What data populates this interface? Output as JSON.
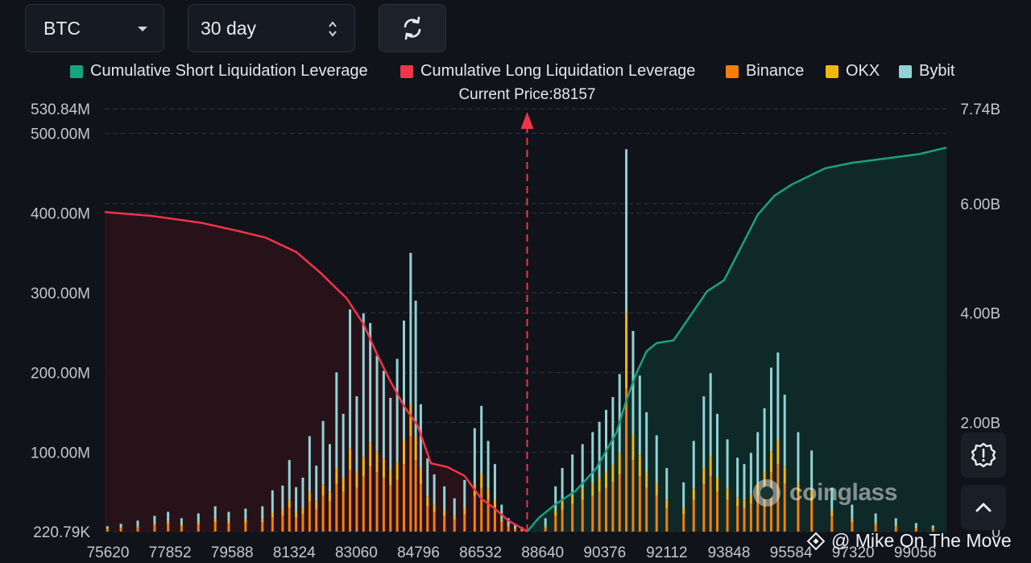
{
  "controls": {
    "symbol": "BTC",
    "range": "30 day"
  },
  "legend": [
    {
      "label": "Cumulative Short Liquidation Leverage",
      "color": "#1ba17f"
    },
    {
      "label": "Cumulative Long Liquidation Leverage",
      "color": "#f0344a"
    },
    {
      "label": "Binance",
      "color": "#f57f0c"
    },
    {
      "label": "OKX",
      "color": "#f2b612"
    },
    {
      "label": "Bybit",
      "color": "#8fd3d6"
    }
  ],
  "current_price_label": "Current Price:88157",
  "watermark": "coinglass",
  "credit": "@ Mike On The Move",
  "icons": [
    "chevron-down-icon",
    "updown-arrows-icon",
    "refresh-icon",
    "warning-gear-icon",
    "chevron-up-icon",
    "binance-diamond-icon"
  ],
  "chart_data": {
    "type": "bar",
    "title": "",
    "xlabel": "",
    "x_tick_labels": [
      "75620",
      "77852",
      "79588",
      "81324",
      "83060",
      "84796",
      "86532",
      "88640",
      "90376",
      "92112",
      "93848",
      "95584",
      "97320",
      "99056"
    ],
    "x_range": [
      75620,
      100600
    ],
    "current_price": 88157,
    "y_left": {
      "range": [
        220790,
        530840000
      ],
      "tick_labels": [
        "530.84M",
        "500.00M",
        "400.00M",
        "300.00M",
        "200.00M",
        "100.00M",
        "220.79K"
      ],
      "tick_values": [
        530840000,
        500000000,
        400000000,
        300000000,
        200000000,
        100000000,
        220790
      ]
    },
    "y_right": {
      "range": [
        0,
        7740000000
      ],
      "tick_labels": [
        "7.74B",
        "6.00B",
        "4.00B",
        "2.00B",
        "0"
      ],
      "tick_values": [
        7740000000,
        6000000000,
        4000000000,
        2000000000,
        0
      ]
    },
    "long_cumulative": {
      "name": "Cumulative Long Liquidation Leverage",
      "price": [
        75620,
        77000,
        78500,
        79600,
        80400,
        81300,
        82000,
        82800,
        83300,
        83700,
        84100,
        84500,
        84900,
        85300,
        85800,
        86300,
        86800,
        87200,
        87600,
        88000,
        88157
      ],
      "value": [
        5850000000,
        5780000000,
        5650000000,
        5500000000,
        5380000000,
        5120000000,
        4750000000,
        4270000000,
        3800000000,
        3250000000,
        2750000000,
        2300000000,
        1950000000,
        1250000000,
        1180000000,
        1020000000,
        600000000,
        420000000,
        200000000,
        60000000,
        0
      ]
    },
    "short_cumulative": {
      "name": "Cumulative Short Liquidation Leverage",
      "price": [
        88157,
        88500,
        89000,
        89600,
        90200,
        90800,
        91100,
        91400,
        91700,
        92000,
        92500,
        93000,
        93500,
        94000,
        94500,
        95000,
        95500,
        96000,
        96500,
        97000,
        97800,
        98800,
        99800,
        100600
      ],
      "value": [
        0,
        250000000,
        500000000,
        750000000,
        1150000000,
        1800000000,
        2400000000,
        2900000000,
        3300000000,
        3450000000,
        3500000000,
        3950000000,
        4400000000,
        4600000000,
        5200000000,
        5800000000,
        6150000000,
        6350000000,
        6500000000,
        6650000000,
        6750000000,
        6830000000,
        6910000000,
        7030000000
      ]
    },
    "bars": {
      "series_names": [
        "Binance",
        "OKX",
        "Bybit"
      ],
      "price": [
        75700,
        76100,
        76600,
        77100,
        77500,
        77900,
        78400,
        78900,
        79300,
        79800,
        80300,
        80600,
        80900,
        81100,
        81300,
        81500,
        81700,
        81900,
        82100,
        82300,
        82500,
        82700,
        82900,
        83100,
        83300,
        83500,
        83700,
        83900,
        84100,
        84300,
        84500,
        84700,
        84850,
        85000,
        85200,
        85400,
        85700,
        86000,
        86300,
        86600,
        86800,
        87000,
        87200,
        87400,
        87600,
        87800,
        88000,
        88700,
        89000,
        89200,
        89500,
        89800,
        90100,
        90300,
        90500,
        90700,
        90900,
        91100,
        91300,
        91500,
        91700,
        92000,
        92300,
        92800,
        93100,
        93400,
        93600,
        93800,
        94100,
        94400,
        94600,
        94800,
        95000,
        95200,
        95400,
        95600,
        95800,
        96200,
        96600,
        97200,
        97800,
        98500,
        99100,
        99700,
        100200
      ],
      "binance": [
        3000000,
        4000000,
        5000000,
        8000000,
        10000000,
        7000000,
        9000000,
        12000000,
        10000000,
        11000000,
        12000000,
        18000000,
        20000000,
        30000000,
        18000000,
        22000000,
        38000000,
        28000000,
        45000000,
        38000000,
        60000000,
        50000000,
        78000000,
        55000000,
        70000000,
        82000000,
        75000000,
        68000000,
        58000000,
        65000000,
        85000000,
        120000000,
        90000000,
        60000000,
        32000000,
        25000000,
        20000000,
        15000000,
        22000000,
        45000000,
        55000000,
        40000000,
        30000000,
        12000000,
        6000000,
        3000000,
        2000000,
        5000000,
        20000000,
        28000000,
        35000000,
        40000000,
        45000000,
        50000000,
        55000000,
        62000000,
        72000000,
        180000000,
        90000000,
        70000000,
        55000000,
        45000000,
        30000000,
        22000000,
        40000000,
        60000000,
        70000000,
        50000000,
        40000000,
        32000000,
        30000000,
        35000000,
        45000000,
        55000000,
        75000000,
        85000000,
        60000000,
        45000000,
        38000000,
        20000000,
        12000000,
        8000000,
        6000000,
        4000000,
        3000000
      ],
      "okx": [
        1000000,
        1000000,
        2000000,
        2000000,
        3000000,
        2000000,
        3000000,
        4000000,
        3000000,
        4000000,
        4000000,
        6000000,
        8000000,
        10000000,
        6000000,
        8000000,
        12000000,
        10000000,
        14000000,
        12000000,
        20000000,
        18000000,
        26000000,
        20000000,
        24000000,
        30000000,
        26000000,
        24000000,
        20000000,
        22000000,
        30000000,
        40000000,
        30000000,
        20000000,
        12000000,
        9000000,
        7000000,
        5000000,
        8000000,
        15000000,
        18000000,
        14000000,
        10000000,
        4000000,
        2000000,
        1000000,
        1000000,
        2000000,
        7000000,
        10000000,
        12000000,
        14000000,
        16000000,
        18000000,
        20000000,
        22000000,
        26000000,
        95000000,
        32000000,
        26000000,
        20000000,
        16000000,
        10000000,
        8000000,
        14000000,
        20000000,
        24000000,
        18000000,
        14000000,
        11000000,
        10000000,
        12000000,
        16000000,
        20000000,
        26000000,
        30000000,
        22000000,
        16000000,
        14000000,
        7000000,
        4000000,
        3000000,
        2000000,
        1000000,
        1000000
      ],
      "bybit": [
        3000000,
        5000000,
        7000000,
        10000000,
        12000000,
        8000000,
        11000000,
        16000000,
        12000000,
        14000000,
        16000000,
        28000000,
        30000000,
        50000000,
        32000000,
        38000000,
        70000000,
        45000000,
        80000000,
        60000000,
        120000000,
        80000000,
        175000000,
        95000000,
        180000000,
        150000000,
        120000000,
        110000000,
        90000000,
        130000000,
        150000000,
        190000000,
        170000000,
        80000000,
        48000000,
        38000000,
        30000000,
        22000000,
        35000000,
        70000000,
        85000000,
        60000000,
        45000000,
        18000000,
        9000000,
        5000000,
        3000000,
        10000000,
        30000000,
        42000000,
        50000000,
        56000000,
        64000000,
        70000000,
        78000000,
        85000000,
        100000000,
        205000000,
        130000000,
        100000000,
        75000000,
        60000000,
        40000000,
        32000000,
        60000000,
        90000000,
        105000000,
        80000000,
        62000000,
        50000000,
        45000000,
        52000000,
        64000000,
        80000000,
        105000000,
        110000000,
        90000000,
        64000000,
        50000000,
        28000000,
        18000000,
        12000000,
        9000000,
        6000000,
        4000000
      ]
    },
    "legend_position": "top",
    "grid": "horizontal dashed"
  }
}
